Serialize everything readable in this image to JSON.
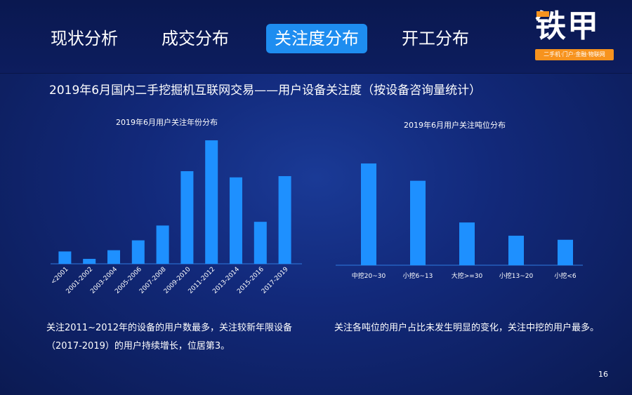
{
  "tabs": [
    {
      "label": "现状分析",
      "active": false
    },
    {
      "label": "成交分布",
      "active": false
    },
    {
      "label": "关注度分布",
      "active": true
    },
    {
      "label": "开工分布",
      "active": false
    }
  ],
  "logo": {
    "name": "铁甲",
    "tagline": "二手机·门户·金融·物联网",
    "accent_color": "#f7931e"
  },
  "subtitle": "2019年6月国内二手挖掘机互联网交易——用户设备关注度（按设备咨询量统计）",
  "chart_data": [
    {
      "type": "bar",
      "title": "2019年6月用户关注年份分布",
      "categories": [
        "<2001",
        "2001-2002",
        "2003-2004",
        "2005-2006",
        "2007-2008",
        "2009-2010",
        "2011-2012",
        "2013-2014",
        "2015-2016",
        "2017-2019"
      ],
      "values": [
        10,
        4,
        11,
        19,
        31,
        75,
        100,
        70,
        34,
        71
      ],
      "ylim": [
        0,
        100
      ],
      "bar_color": "#1e90ff",
      "grid": false
    },
    {
      "type": "bar",
      "title": "2019年6月用户关注吨位分布",
      "categories": [
        "中挖20~30",
        "小挖6~13",
        "大挖>=30",
        "小挖13~20",
        "小挖<6"
      ],
      "values": [
        100,
        83,
        42,
        29,
        25
      ],
      "ylim": [
        0,
        100
      ],
      "bar_color": "#1e90ff",
      "grid": false
    }
  ],
  "notes": {
    "left_line1": "关注2011~2012年的设备的用户数最多，关注较新年限设备",
    "left_line2": "（2017-2019）的用户持续增长，位居第3。",
    "right": "关注各吨位的用户占比未发生明显的变化，关注中挖的用户最多。"
  },
  "page_number": "16"
}
